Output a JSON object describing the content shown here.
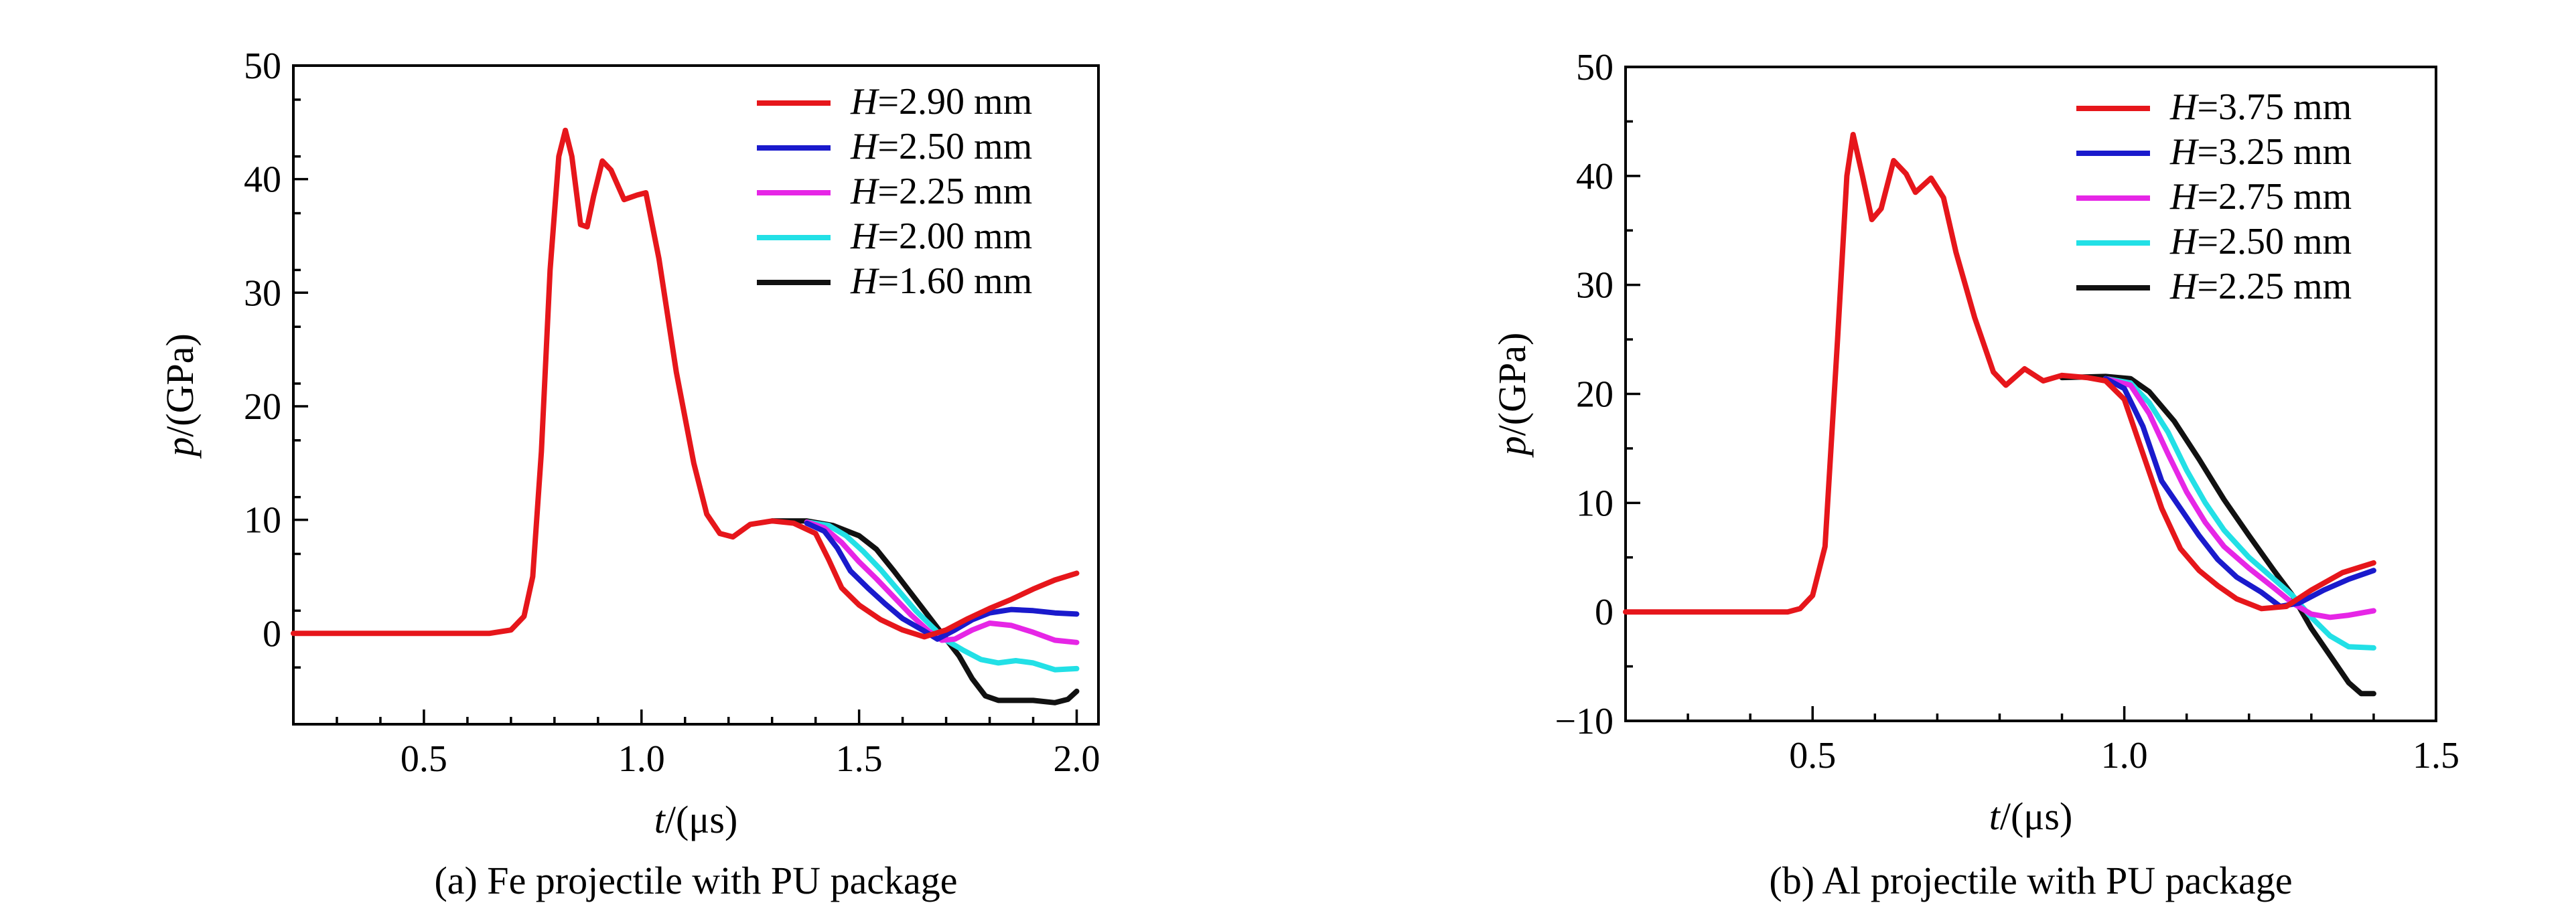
{
  "chart_data": [
    {
      "type": "line",
      "caption": "(a) Fe projectile with PU package",
      "xlabel_var": "t",
      "xlabel_unit": "/(μs)",
      "ylabel_var": "p",
      "ylabel_unit": "/(GPa)",
      "xlim": [
        0.2,
        2.05
      ],
      "ylim": [
        -8,
        50
      ],
      "xticks": [
        0.5,
        1.0,
        1.5,
        2.0
      ],
      "xtick_labels": [
        "0.5",
        "1.0",
        "1.5",
        "2.0"
      ],
      "yticks": [
        0,
        10,
        20,
        30,
        40,
        50
      ],
      "ytick_labels": [
        "0",
        "10",
        "20",
        "30",
        "40",
        "50"
      ],
      "legend_position": "top-right",
      "series": [
        {
          "name_var": "H",
          "name_value": "=2.90 mm",
          "color": "#e6161b",
          "points": [
            [
              0.2,
              0
            ],
            [
              0.65,
              0
            ],
            [
              0.7,
              0.3
            ],
            [
              0.73,
              1.5
            ],
            [
              0.75,
              5
            ],
            [
              0.77,
              16
            ],
            [
              0.79,
              32
            ],
            [
              0.81,
              42
            ],
            [
              0.825,
              44.3
            ],
            [
              0.84,
              42
            ],
            [
              0.86,
              36
            ],
            [
              0.875,
              35.8
            ],
            [
              0.89,
              38.5
            ],
            [
              0.91,
              41.6
            ],
            [
              0.93,
              40.8
            ],
            [
              0.96,
              38.2
            ],
            [
              0.99,
              38.6
            ],
            [
              1.01,
              38.8
            ],
            [
              1.04,
              33
            ],
            [
              1.08,
              23
            ],
            [
              1.12,
              15
            ],
            [
              1.15,
              10.5
            ],
            [
              1.18,
              8.8
            ],
            [
              1.21,
              8.5
            ],
            [
              1.25,
              9.6
            ],
            [
              1.3,
              9.9
            ],
            [
              1.35,
              9.7
            ],
            [
              1.4,
              8.8
            ],
            [
              1.43,
              6.5
            ],
            [
              1.46,
              4.0
            ],
            [
              1.5,
              2.5
            ],
            [
              1.55,
              1.2
            ],
            [
              1.6,
              0.3
            ],
            [
              1.65,
              -0.3
            ],
            [
              1.7,
              0.3
            ],
            [
              1.75,
              1.3
            ],
            [
              1.8,
              2.2
            ],
            [
              1.85,
              3.0
            ],
            [
              1.9,
              3.9
            ],
            [
              1.95,
              4.7
            ],
            [
              2.0,
              5.3
            ]
          ]
        },
        {
          "name_var": "H",
          "name_value": "=2.50 mm",
          "color": "#1a1acc",
          "points": [
            [
              1.38,
              9.7
            ],
            [
              1.42,
              9.0
            ],
            [
              1.45,
              7.5
            ],
            [
              1.48,
              5.5
            ],
            [
              1.52,
              4.0
            ],
            [
              1.56,
              2.6
            ],
            [
              1.6,
              1.3
            ],
            [
              1.65,
              0.2
            ],
            [
              1.68,
              -0.5
            ],
            [
              1.72,
              0.3
            ],
            [
              1.76,
              1.2
            ],
            [
              1.8,
              1.8
            ],
            [
              1.85,
              2.1
            ],
            [
              1.9,
              2.0
            ],
            [
              1.95,
              1.8
            ],
            [
              2.0,
              1.7
            ]
          ]
        },
        {
          "name_var": "H",
          "name_value": "=2.25 mm",
          "color": "#e626e6",
          "points": [
            [
              1.38,
              9.8
            ],
            [
              1.42,
              9.3
            ],
            [
              1.46,
              8.0
            ],
            [
              1.5,
              6.3
            ],
            [
              1.54,
              4.8
            ],
            [
              1.58,
              3.2
            ],
            [
              1.62,
              1.6
            ],
            [
              1.66,
              0.2
            ],
            [
              1.69,
              -0.6
            ],
            [
              1.72,
              -0.5
            ],
            [
              1.76,
              0.3
            ],
            [
              1.8,
              0.9
            ],
            [
              1.85,
              0.7
            ],
            [
              1.9,
              0.1
            ],
            [
              1.95,
              -0.6
            ],
            [
              2.0,
              -0.8
            ]
          ]
        },
        {
          "name_var": "H",
          "name_value": "=2.00 mm",
          "color": "#22e0e6",
          "points": [
            [
              1.38,
              9.8
            ],
            [
              1.43,
              9.5
            ],
            [
              1.47,
              8.6
            ],
            [
              1.51,
              7.2
            ],
            [
              1.55,
              5.6
            ],
            [
              1.59,
              3.8
            ],
            [
              1.63,
              2.0
            ],
            [
              1.67,
              0.5
            ],
            [
              1.7,
              -0.6
            ],
            [
              1.74,
              -1.5
            ],
            [
              1.78,
              -2.3
            ],
            [
              1.82,
              -2.6
            ],
            [
              1.86,
              -2.4
            ],
            [
              1.9,
              -2.6
            ],
            [
              1.95,
              -3.2
            ],
            [
              2.0,
              -3.1
            ]
          ]
        },
        {
          "name_var": "H",
          "name_value": "=1.60 mm",
          "color": "#111111",
          "points": [
            [
              1.3,
              9.9
            ],
            [
              1.38,
              9.9
            ],
            [
              1.44,
              9.5
            ],
            [
              1.5,
              8.6
            ],
            [
              1.54,
              7.4
            ],
            [
              1.58,
              5.5
            ],
            [
              1.62,
              3.5
            ],
            [
              1.66,
              1.5
            ],
            [
              1.7,
              -0.5
            ],
            [
              1.73,
              -2.0
            ],
            [
              1.76,
              -4.0
            ],
            [
              1.79,
              -5.5
            ],
            [
              1.82,
              -5.9
            ],
            [
              1.86,
              -5.9
            ],
            [
              1.9,
              -5.9
            ],
            [
              1.95,
              -6.1
            ],
            [
              1.98,
              -5.8
            ],
            [
              2.0,
              -5.1
            ]
          ]
        }
      ]
    },
    {
      "type": "line",
      "caption": "(b) Al projectile with PU package",
      "xlabel_var": "t",
      "xlabel_unit": "/(μs)",
      "ylabel_var": "p",
      "ylabel_unit": "/(GPa)",
      "xlim": [
        0.2,
        1.5
      ],
      "ylim": [
        -10,
        50
      ],
      "xticks": [
        0.5,
        1.0,
        1.5
      ],
      "xtick_labels": [
        "0.5",
        "1.0",
        "1.5"
      ],
      "yticks": [
        -10,
        0,
        10,
        20,
        30,
        40,
        50
      ],
      "ytick_labels": [
        "−10",
        "0",
        "10",
        "20",
        "30",
        "40",
        "50"
      ],
      "legend_position": "top-right",
      "series": [
        {
          "name_var": "H",
          "name_value": "=3.75 mm",
          "color": "#e6161b",
          "points": [
            [
              0.2,
              0
            ],
            [
              0.46,
              0
            ],
            [
              0.48,
              0.3
            ],
            [
              0.5,
              1.5
            ],
            [
              0.52,
              6
            ],
            [
              0.54,
              25
            ],
            [
              0.555,
              40
            ],
            [
              0.565,
              43.8
            ],
            [
              0.58,
              40
            ],
            [
              0.595,
              36
            ],
            [
              0.61,
              37
            ],
            [
              0.63,
              41.4
            ],
            [
              0.65,
              40.2
            ],
            [
              0.665,
              38.5
            ],
            [
              0.69,
              39.8
            ],
            [
              0.71,
              38
            ],
            [
              0.73,
              33
            ],
            [
              0.76,
              27
            ],
            [
              0.79,
              22
            ],
            [
              0.81,
              20.8
            ],
            [
              0.84,
              22.3
            ],
            [
              0.87,
              21.2
            ],
            [
              0.9,
              21.7
            ],
            [
              0.94,
              21.5
            ],
            [
              0.97,
              21.2
            ],
            [
              1.0,
              19.5
            ],
            [
              1.03,
              14.5
            ],
            [
              1.06,
              9.5
            ],
            [
              1.09,
              5.8
            ],
            [
              1.12,
              3.8
            ],
            [
              1.15,
              2.4
            ],
            [
              1.18,
              1.2
            ],
            [
              1.22,
              0.3
            ],
            [
              1.26,
              0.5
            ],
            [
              1.3,
              2.0
            ],
            [
              1.35,
              3.6
            ],
            [
              1.4,
              4.5
            ]
          ]
        },
        {
          "name_var": "H",
          "name_value": "=3.25 mm",
          "color": "#1a1acc",
          "points": [
            [
              0.97,
              21.4
            ],
            [
              1.0,
              20.5
            ],
            [
              1.03,
              17.0
            ],
            [
              1.06,
              12.0
            ],
            [
              1.09,
              9.5
            ],
            [
              1.12,
              7.0
            ],
            [
              1.15,
              4.8
            ],
            [
              1.18,
              3.2
            ],
            [
              1.22,
              1.8
            ],
            [
              1.25,
              0.5
            ],
            [
              1.28,
              0.8
            ],
            [
              1.32,
              2.0
            ],
            [
              1.36,
              3.0
            ],
            [
              1.4,
              3.8
            ]
          ]
        },
        {
          "name_var": "H",
          "name_value": "=2.75 mm",
          "color": "#e626e6",
          "points": [
            [
              0.97,
              21.4
            ],
            [
              1.01,
              20.8
            ],
            [
              1.04,
              18.2
            ],
            [
              1.07,
              14.5
            ],
            [
              1.1,
              11.0
            ],
            [
              1.13,
              8.2
            ],
            [
              1.16,
              6.0
            ],
            [
              1.2,
              4.0
            ],
            [
              1.24,
              2.2
            ],
            [
              1.27,
              0.8
            ],
            [
              1.3,
              -0.2
            ],
            [
              1.33,
              -0.5
            ],
            [
              1.36,
              -0.3
            ],
            [
              1.4,
              0.1
            ]
          ]
        },
        {
          "name_var": "H",
          "name_value": "=2.50 mm",
          "color": "#22e0e6",
          "points": [
            [
              0.97,
              21.4
            ],
            [
              1.01,
              21.0
            ],
            [
              1.04,
              19.2
            ],
            [
              1.07,
              16.5
            ],
            [
              1.1,
              13.0
            ],
            [
              1.13,
              10.0
            ],
            [
              1.16,
              7.5
            ],
            [
              1.2,
              5.0
            ],
            [
              1.24,
              3.0
            ],
            [
              1.27,
              1.5
            ],
            [
              1.3,
              -0.5
            ],
            [
              1.33,
              -2.2
            ],
            [
              1.36,
              -3.2
            ],
            [
              1.4,
              -3.3
            ]
          ]
        },
        {
          "name_var": "H",
          "name_value": "=2.25 mm",
          "color": "#111111",
          "points": [
            [
              0.9,
              21.5
            ],
            [
              0.97,
              21.6
            ],
            [
              1.01,
              21.4
            ],
            [
              1.04,
              20.2
            ],
            [
              1.08,
              17.5
            ],
            [
              1.12,
              14.0
            ],
            [
              1.16,
              10.3
            ],
            [
              1.2,
              7.0
            ],
            [
              1.24,
              3.8
            ],
            [
              1.27,
              1.5
            ],
            [
              1.3,
              -1.5
            ],
            [
              1.33,
              -4.0
            ],
            [
              1.36,
              -6.5
            ],
            [
              1.38,
              -7.5
            ],
            [
              1.4,
              -7.5
            ]
          ]
        }
      ]
    }
  ]
}
